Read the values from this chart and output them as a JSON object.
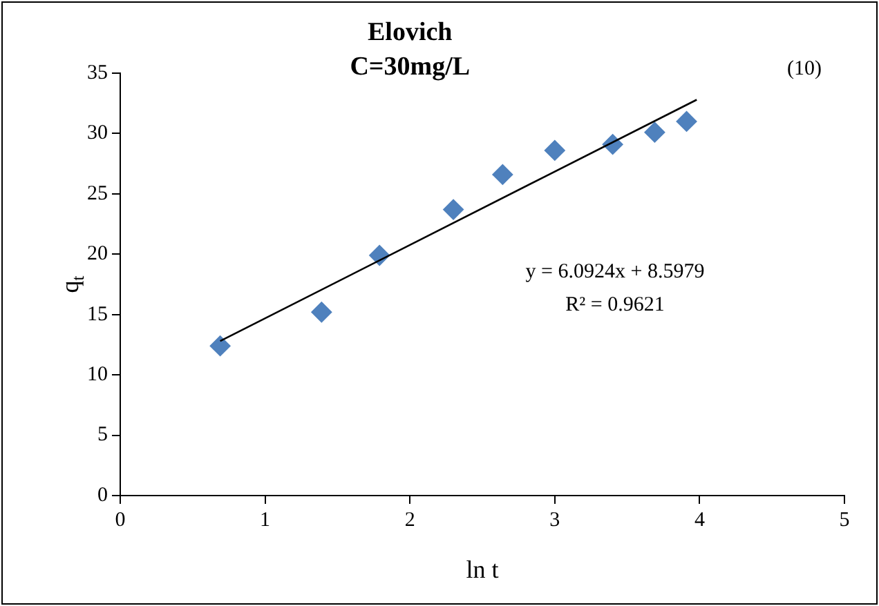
{
  "chart_data": {
    "type": "scatter",
    "title": "Elovich",
    "subtitle": "C=30mg/L",
    "xlabel": "ln t",
    "ylabel": "q$_{t}$",
    "xlim": [
      0,
      5
    ],
    "xticks": [
      0,
      1,
      2,
      3,
      4,
      5
    ],
    "ylim": [
      0,
      35
    ],
    "yticks": [
      0,
      5,
      10,
      15,
      20,
      25,
      30,
      35
    ],
    "grid": false,
    "legend": false,
    "marker": "diamond",
    "series": [
      {
        "type": "scatter",
        "color": "#4f81bd",
        "x": [
          0.69,
          1.39,
          1.79,
          2.3,
          2.64,
          3.0,
          3.4,
          3.69,
          3.91
        ],
        "values": [
          12.4,
          15.2,
          19.9,
          23.7,
          26.6,
          28.6,
          29.1,
          30.1,
          31.0
        ]
      },
      {
        "type": "line",
        "color": "#000000",
        "marker": "none",
        "line_style": "solid",
        "x": [
          0.69,
          3.98
        ],
        "values": [
          12.8,
          32.8
        ]
      }
    ],
    "annotations": [
      "(10)",
      "y = 6.0924x + 8.5979",
      "R² = 0.9621"
    ]
  }
}
